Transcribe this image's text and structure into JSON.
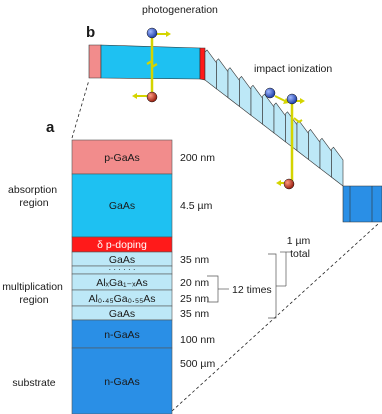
{
  "panel_a": {
    "letter": "a",
    "layers": [
      {
        "id": "p-gaas",
        "name": "p-GaAs",
        "thickness": "200 nm",
        "color": "#f28c8c"
      },
      {
        "id": "gaas-abs",
        "name": "GaAs",
        "thickness": "4.5 µm",
        "color": "#1ec1f2"
      },
      {
        "id": "delta",
        "name": "δ p-doping",
        "thickness": "",
        "color": "#ff1a1a"
      },
      {
        "id": "gaas-top",
        "name": "GaAs",
        "thickness": "35 nm",
        "color": "#bde8f7"
      },
      {
        "id": "dots",
        "name": "· · · · · ·",
        "thickness": "",
        "color": "#bde8f7"
      },
      {
        "id": "algaas-x",
        "name": "AlₓGa₁₋ₓAs",
        "thickness": "20 nm",
        "color": "#bde8f7"
      },
      {
        "id": "algaas-045",
        "name": "Al₀.₄₅Ga₀.₅₅As",
        "thickness": "25 nm",
        "color": "#bde8f7"
      },
      {
        "id": "gaas-mult",
        "name": "GaAs",
        "thickness": "35 nm",
        "color": "#bde8f7"
      },
      {
        "id": "n-gaas-1",
        "name": "n-GaAs",
        "thickness": "100 nm",
        "color": "#2a8fe6"
      },
      {
        "id": "n-gaas-2",
        "name": "n-GaAs",
        "thickness": "500 µm",
        "color": "#2a8fe6"
      }
    ],
    "regions": {
      "absorption": [
        "absorption",
        "region"
      ],
      "multiplication": [
        "multiplication",
        "region"
      ],
      "substrate": "substrate"
    },
    "repeat_label": "12 times",
    "total_label": [
      "1 µm",
      "total"
    ]
  },
  "panel_b": {
    "letter": "b",
    "photogeneration": "photogeneration",
    "impact_ionization": "impact ionization",
    "electron_color": "#1f3fa8",
    "hole_color": "#b02a1a",
    "wire_color": "#e6e62e"
  }
}
